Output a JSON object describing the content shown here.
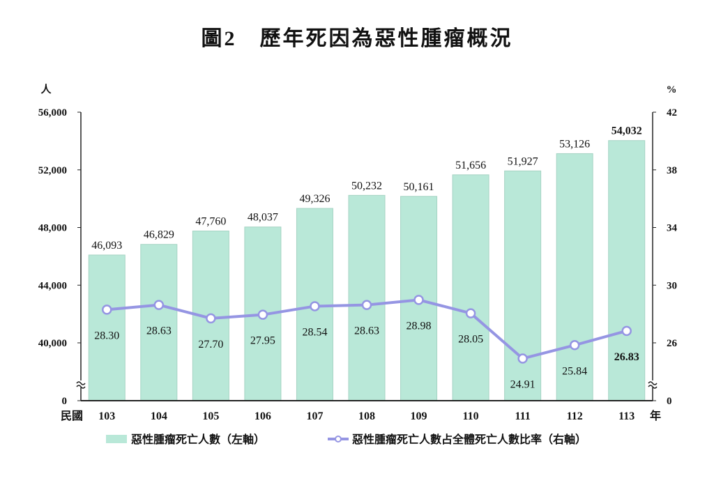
{
  "chart_data": {
    "type": "bar+line",
    "title": "圖2　歷年死因為惡性腫瘤概況",
    "x_prefix": "民國",
    "x_suffix": "年",
    "categories": [
      "103",
      "104",
      "105",
      "106",
      "107",
      "108",
      "109",
      "110",
      "111",
      "112",
      "113"
    ],
    "left_axis": {
      "unit": "人",
      "ticks": [
        "0",
        "40,000",
        "44,000",
        "48,000",
        "52,000",
        "56,000"
      ],
      "range": [
        40000,
        56000
      ],
      "axis_break": true
    },
    "right_axis": {
      "unit": "%",
      "ticks": [
        "0",
        "26",
        "30",
        "34",
        "38",
        "42"
      ],
      "range": [
        26,
        42
      ],
      "axis_break": true
    },
    "series": [
      {
        "name": "惡性腫瘤死亡人數（左軸）",
        "type": "bar",
        "axis": "left",
        "color": "#b9e8d8",
        "values": [
          46093,
          46829,
          47760,
          48037,
          49326,
          50232,
          50161,
          51656,
          51927,
          53126,
          54032
        ],
        "labels": [
          "46,093",
          "46,829",
          "47,760",
          "48,037",
          "49,326",
          "50,232",
          "50,161",
          "51,656",
          "51,927",
          "53,126",
          "54,032"
        ]
      },
      {
        "name": "惡性腫瘤死亡人數占全體死亡人數比率（右軸）",
        "type": "line",
        "axis": "right",
        "color": "#9595e3",
        "values": [
          28.3,
          28.63,
          27.7,
          27.95,
          28.54,
          28.63,
          28.98,
          28.05,
          24.91,
          25.84,
          26.83
        ],
        "labels": [
          "28.30",
          "28.63",
          "27.70",
          "27.95",
          "28.54",
          "28.63",
          "28.98",
          "28.05",
          "24.91",
          "25.84",
          "26.83"
        ]
      }
    ],
    "highlight_last": true,
    "legend_position": "bottom",
    "grid": false
  }
}
